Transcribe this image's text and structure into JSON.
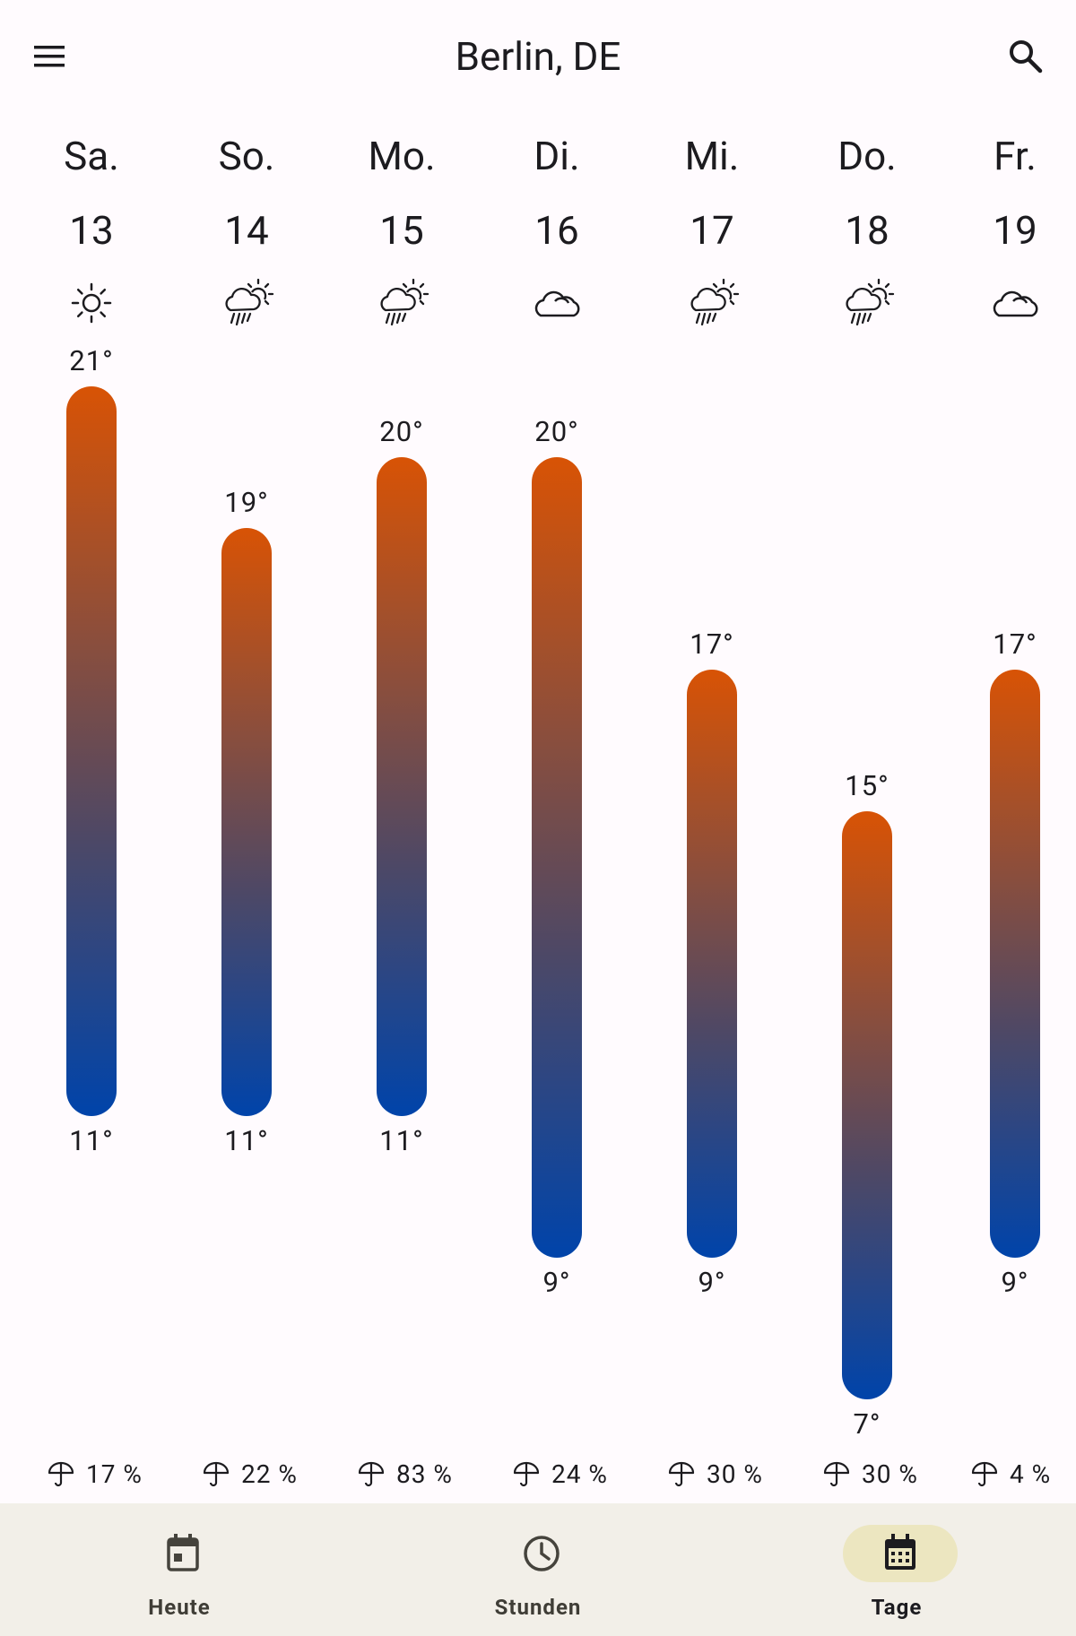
{
  "header": {
    "title": "Berlin, DE",
    "menu_icon": "menu-icon",
    "search_icon": "search-icon"
  },
  "days": [
    {
      "name": "Sa.",
      "date": "13",
      "icon": "sunny-icon",
      "high": 21,
      "low": 11,
      "high_label": "21°",
      "low_label": "11°",
      "precip": "17 %"
    },
    {
      "name": "So.",
      "date": "14",
      "icon": "rain-sun-icon",
      "high": 19,
      "low": 11,
      "high_label": "19°",
      "low_label": "11°",
      "precip": "22 %"
    },
    {
      "name": "Mo.",
      "date": "15",
      "icon": "rain-sun-icon",
      "high": 20,
      "low": 11,
      "high_label": "20°",
      "low_label": "11°",
      "precip": "83 %"
    },
    {
      "name": "Di.",
      "date": "16",
      "icon": "cloudy-icon",
      "high": 20,
      "low": 9,
      "high_label": "20°",
      "low_label": "9°",
      "precip": "24 %"
    },
    {
      "name": "Mi.",
      "date": "17",
      "icon": "rain-sun-icon",
      "high": 17,
      "low": 9,
      "high_label": "17°",
      "low_label": "9°",
      "precip": "30 %"
    },
    {
      "name": "Do.",
      "date": "18",
      "icon": "rain-sun-icon",
      "high": 15,
      "low": 7,
      "high_label": "15°",
      "low_label": "7°",
      "precip": "30 %"
    },
    {
      "name": "Fr.",
      "date": "19",
      "icon": "cloudy-icon",
      "high": 17,
      "low": 9,
      "high_label": "17°",
      "low_label": "9°",
      "precip": "4 %"
    }
  ],
  "nav": [
    {
      "label": "Heute",
      "icon": "calendar-today-icon",
      "active": false
    },
    {
      "label": "Stunden",
      "icon": "clock-icon",
      "active": false
    },
    {
      "label": "Tage",
      "icon": "calendar-month-icon",
      "active": true
    }
  ],
  "colors": {
    "bar_top": "#d85305",
    "bar_bottom": "#0044aa",
    "nav_background": "#f2efe8",
    "nav_active_pill": "#ece6c0"
  }
}
